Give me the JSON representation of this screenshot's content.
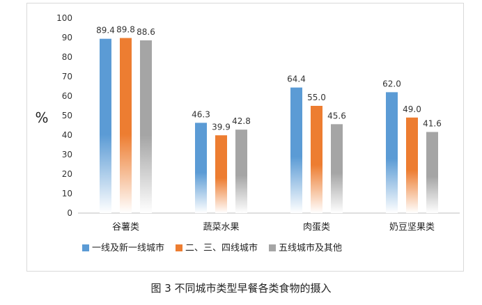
{
  "chart_data": {
    "type": "bar",
    "categories": [
      "谷薯类",
      "蔬菜水果",
      "肉蛋类",
      "奶豆坚果类"
    ],
    "series": [
      {
        "name": "一线及新一线城市",
        "values": [
          89.4,
          46.3,
          64.4,
          62.0
        ],
        "color": "#5b9bd5"
      },
      {
        "name": "二、三、四线城市",
        "values": [
          89.8,
          39.9,
          55.0,
          49.0
        ],
        "color": "#ed7d31"
      },
      {
        "name": "五线城市及其他",
        "values": [
          88.6,
          42.8,
          45.6,
          41.6
        ],
        "color": "#a5a5a5"
      }
    ],
    "value_labels": [
      [
        "89.4",
        "46.3",
        "64.4",
        "62.0"
      ],
      [
        "89.8",
        "39.9",
        "55.0",
        "49.0"
      ],
      [
        "88.6",
        "42.8",
        "45.6",
        "41.6"
      ]
    ],
    "ylabel": "%",
    "yticks": [
      "0",
      "10",
      "20",
      "30",
      "40",
      "50",
      "60",
      "70",
      "80",
      "90",
      "100"
    ],
    "ylim": [
      0,
      100
    ],
    "grid": false,
    "legend_position": "bottom"
  },
  "caption": "图 3  不同城市类型早餐各类食物的摄入"
}
